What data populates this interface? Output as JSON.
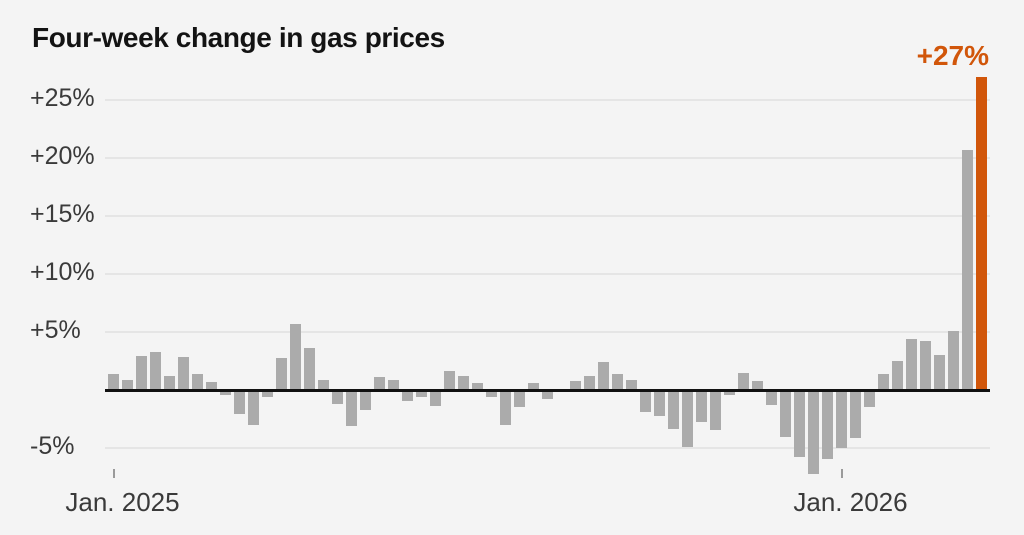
{
  "title": "Four-week change in gas prices",
  "colors": {
    "background": "#f4f4f4",
    "bar": "#ababab",
    "highlight": "#d1560a",
    "axis": "#111111",
    "gridline": "#e5e5e5",
    "text": "#3a3a3a",
    "title": "#131313",
    "tick": "#9a9a9a"
  },
  "chart_data": {
    "type": "bar",
    "title": "Four-week change in gas prices",
    "unit": "percent (four-week change)",
    "grid": true,
    "ylim": [
      -8,
      28
    ],
    "annotation": "+27%",
    "highlight_index": 62,
    "y_ticks": [
      {
        "value": 25,
        "label": "+25%"
      },
      {
        "value": 20,
        "label": "+20%"
      },
      {
        "value": 15,
        "label": "+15%"
      },
      {
        "value": 10,
        "label": "+10%"
      },
      {
        "value": 5,
        "label": "+5%"
      },
      {
        "value": -5,
        "label": "-5%"
      }
    ],
    "x_ticks": [
      {
        "week_index": 0,
        "label": "Jan. 2025"
      },
      {
        "week_index": 52,
        "label": "Jan. 2026"
      }
    ],
    "values": [
      1.4,
      0.9,
      2.9,
      3.3,
      1.2,
      2.85,
      1.35,
      0.7,
      -0.3,
      -1.9,
      -2.85,
      -0.4,
      2.75,
      5.7,
      3.6,
      0.9,
      -1.0,
      -2.9,
      -1.55,
      1.15,
      0.9,
      -0.8,
      -0.4,
      -1.2,
      1.65,
      1.2,
      0.6,
      -0.4,
      -2.85,
      -1.3,
      0.6,
      -0.6,
      0,
      0.8,
      1.25,
      2.4,
      1.4,
      0.85,
      -1.75,
      -2.1,
      -3.2,
      -4.75,
      -2.6,
      -3.3,
      -0.25,
      1.45,
      0.8,
      -1.15,
      -3.9,
      -5.6,
      -7.1,
      -5.75,
      -4.85,
      -4.0,
      -1.3,
      1.4,
      2.5,
      4.4,
      4.2,
      3.0,
      5.05,
      20.7,
      27
    ]
  }
}
